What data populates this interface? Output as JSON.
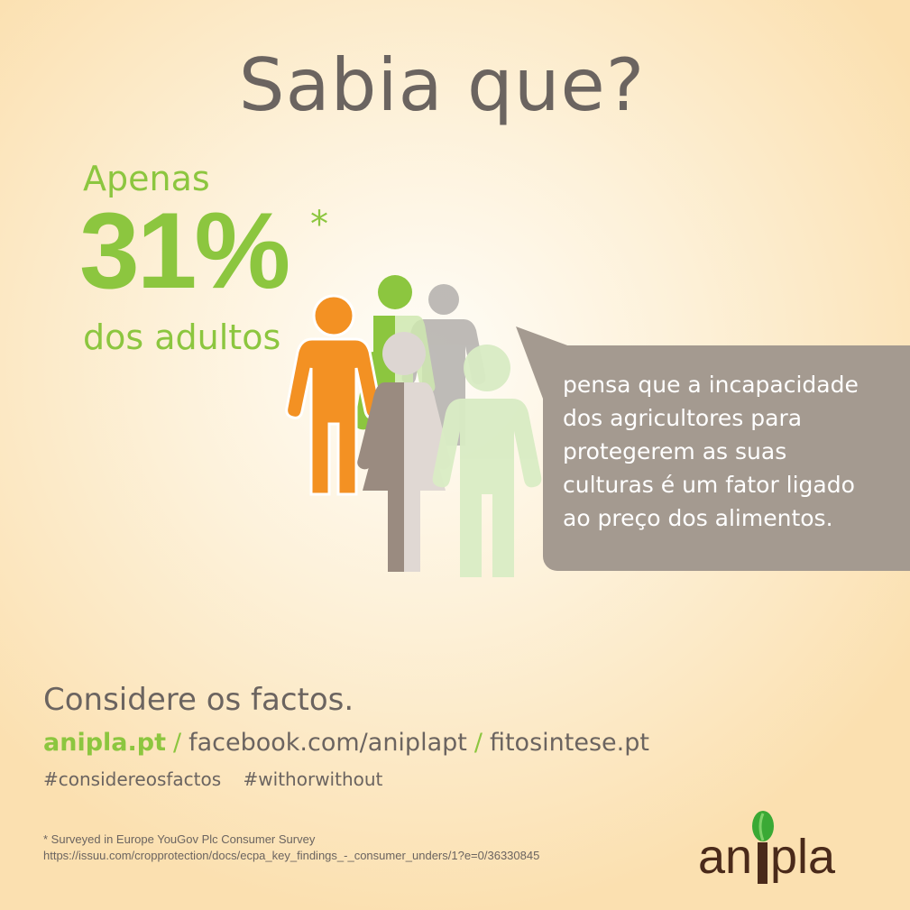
{
  "title": "Sabia que?",
  "stat": {
    "prefix": "Apenas",
    "value": "31%",
    "mark": "*",
    "suffix": "dos adultos"
  },
  "bubble": {
    "lines": [
      "pensa que a incapacidade",
      "dos agricultores para",
      "protegerem as suas",
      "culturas é um fator ligado",
      "ao preço dos alimentos."
    ]
  },
  "footer": {
    "headline": "Considere os factos.",
    "links": [
      "anipla.pt",
      "facebook.com/aniplapt",
      "fitosintese.pt"
    ],
    "separator": "/",
    "hashtags": [
      "#considereosfactos",
      "#withorwithout"
    ],
    "note": "* Surveyed in Europe YouGov Plc Consumer Survey",
    "source": "https://issuu.com/cropprotection/docs/ecpa_key_findings_-_consumer_unders/1?e=0/36330845"
  },
  "logo": {
    "text": "anipla"
  },
  "colors": {
    "green": "#8cc63f",
    "orange": "#f39123",
    "gray_text": "#6b6460",
    "bubble": "#a49a90",
    "logo_brown": "#4a2a1a"
  }
}
